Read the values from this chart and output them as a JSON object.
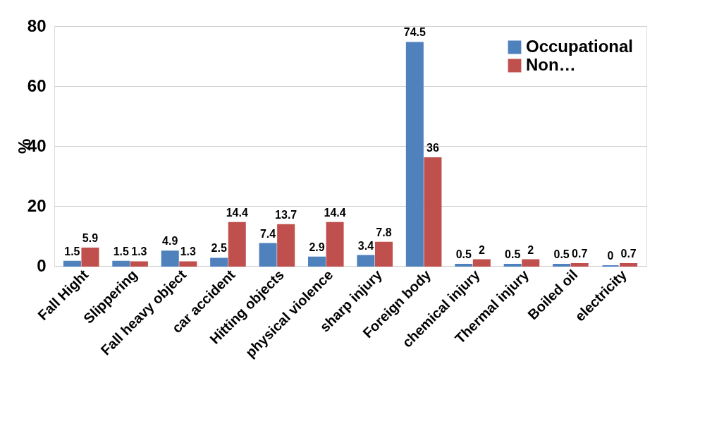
{
  "chart_data": {
    "type": "bar",
    "ylabel": "%",
    "categories": [
      "Fall Hight",
      "Slippering",
      "Fall heavy object",
      "car accident",
      "Hitting objects",
      "physical violence",
      "sharp injury",
      "Foreign body",
      "chemical injury",
      "Thermal injury",
      "Boiled oil",
      "electricity"
    ],
    "series": [
      {
        "name": "Occupational",
        "color": "#4f81bd",
        "values": [
          1.5,
          1.5,
          4.9,
          2.5,
          7.4,
          2.9,
          3.4,
          74.5,
          0.5,
          0.5,
          0.5,
          0
        ]
      },
      {
        "name": "Non…",
        "color": "#c0504d",
        "values": [
          5.9,
          1.3,
          1.3,
          14.4,
          13.7,
          14.4,
          7.8,
          36,
          2,
          2,
          0.7,
          0.7
        ]
      }
    ],
    "ylim": [
      0,
      80
    ],
    "yticks": [
      0,
      20,
      40,
      60,
      80
    ],
    "grid": "y",
    "legend": "top right",
    "data_labels": true
  }
}
